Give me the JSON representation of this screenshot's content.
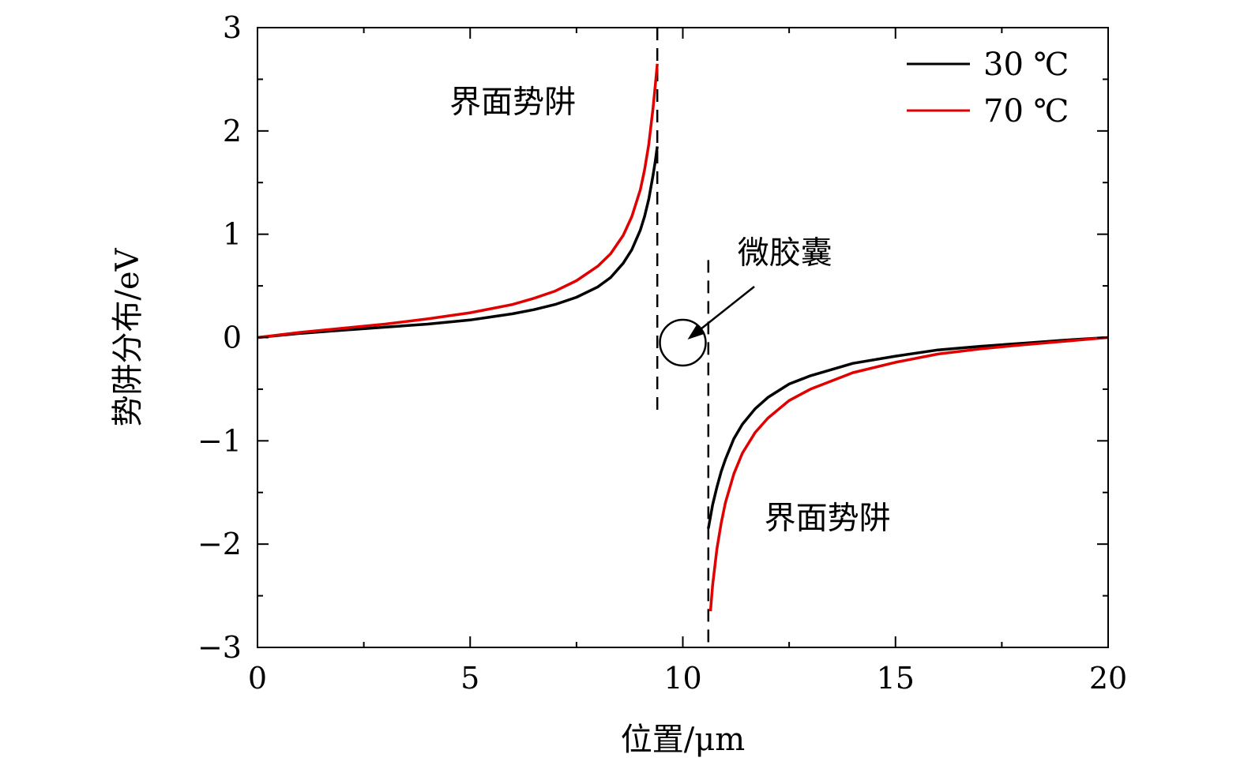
{
  "chart_data": {
    "type": "line",
    "title": "",
    "xlabel": "位置/μm",
    "ylabel": "势阱分布/eV",
    "xlim": [
      0,
      20
    ],
    "ylim": [
      -3,
      3
    ],
    "xticks": [
      0,
      5,
      10,
      15,
      20
    ],
    "yticks": [
      -3,
      -2,
      -1,
      0,
      1,
      2,
      3
    ],
    "x_tick_labels": [
      "0",
      "5",
      "10",
      "15",
      "20"
    ],
    "y_tick_labels": [
      "−3",
      "−2",
      "−1",
      "0",
      "1",
      "2",
      "3"
    ],
    "grid": false,
    "legend_position": "top-right",
    "boundaries": [
      9.4,
      10.6
    ],
    "capsule_center": [
      10.0,
      -0.05
    ],
    "series": [
      {
        "name": "30 ℃",
        "color": "#000000",
        "left": {
          "x": [
            0,
            1,
            2,
            3,
            4,
            5,
            6,
            6.5,
            7,
            7.5,
            8,
            8.3,
            8.6,
            8.8,
            9.0,
            9.1,
            9.2,
            9.3,
            9.35,
            9.4
          ],
          "y": [
            0,
            0.04,
            0.07,
            0.1,
            0.13,
            0.17,
            0.23,
            0.27,
            0.32,
            0.39,
            0.49,
            0.58,
            0.72,
            0.85,
            1.04,
            1.17,
            1.34,
            1.57,
            1.7,
            1.85
          ]
        },
        "right": {
          "x": [
            10.6,
            10.7,
            10.8,
            10.9,
            11.0,
            11.2,
            11.4,
            11.7,
            12.0,
            12.5,
            13,
            14,
            15,
            16,
            17,
            18,
            19,
            20
          ],
          "y": [
            -1.85,
            -1.62,
            -1.45,
            -1.3,
            -1.18,
            -0.98,
            -0.84,
            -0.69,
            -0.58,
            -0.45,
            -0.37,
            -0.25,
            -0.18,
            -0.12,
            -0.085,
            -0.055,
            -0.025,
            0
          ]
        }
      },
      {
        "name": "70 ℃",
        "color": "#e00000",
        "left": {
          "x": [
            0,
            1,
            2,
            3,
            4,
            5,
            6,
            6.5,
            7,
            7.5,
            8,
            8.3,
            8.6,
            8.8,
            9.0,
            9.1,
            9.2,
            9.3,
            9.35,
            9.4
          ],
          "y": [
            0,
            0.05,
            0.09,
            0.13,
            0.18,
            0.24,
            0.32,
            0.38,
            0.45,
            0.55,
            0.69,
            0.81,
            0.99,
            1.17,
            1.43,
            1.62,
            1.87,
            2.22,
            2.43,
            2.65
          ]
        },
        "right": {
          "x": [
            10.65,
            10.7,
            10.8,
            10.9,
            11.0,
            11.2,
            11.4,
            11.7,
            12.0,
            12.5,
            13,
            14,
            15,
            16,
            17,
            18,
            19,
            20
          ],
          "y": [
            -2.65,
            -2.4,
            -2.05,
            -1.8,
            -1.6,
            -1.32,
            -1.12,
            -0.92,
            -0.78,
            -0.61,
            -0.5,
            -0.34,
            -0.24,
            -0.16,
            -0.11,
            -0.07,
            -0.035,
            0
          ]
        }
      }
    ],
    "annotations": [
      {
        "text": "界面势阱",
        "x": 6.0,
        "y": 2.18
      },
      {
        "text": "界面势阱",
        "x": 13.4,
        "y": -1.85
      },
      {
        "text": "微胶囊",
        "x": 12.4,
        "y": 0.72
      }
    ]
  }
}
